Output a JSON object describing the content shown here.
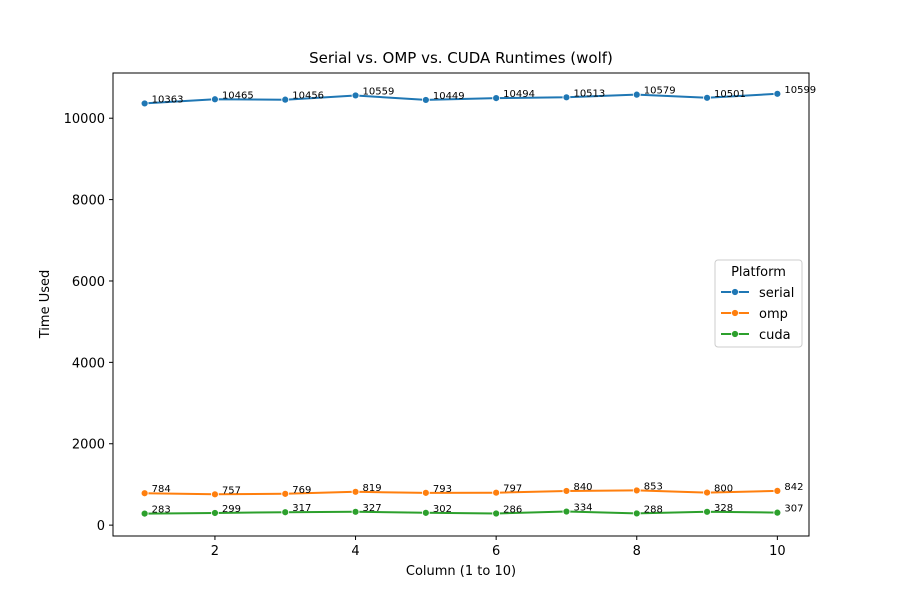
{
  "chart_data": {
    "type": "line",
    "title": "Serial vs. OMP vs. CUDA Runtimes (wolf)",
    "xlabel": "Column (1 to 10)",
    "ylabel": "Time Used",
    "x": [
      1,
      2,
      3,
      4,
      5,
      6,
      7,
      8,
      9,
      10
    ],
    "xticks": [
      2,
      4,
      6,
      8,
      10
    ],
    "yticks": [
      0,
      2000,
      4000,
      6000,
      8000,
      10000
    ],
    "xlim": [
      0.55,
      10.45
    ],
    "ylim": [
      -267,
      11111
    ],
    "grid": false,
    "legend": {
      "title": "Platform",
      "placement": "center-right"
    },
    "series": [
      {
        "name": "serial",
        "color": "#1f77b4",
        "values": [
          10363,
          10465,
          10456,
          10559,
          10449,
          10494,
          10513,
          10579,
          10501,
          10599
        ]
      },
      {
        "name": "omp",
        "color": "#ff7f0e",
        "values": [
          784,
          757,
          769,
          819,
          793,
          797,
          840,
          853,
          800,
          842
        ]
      },
      {
        "name": "cuda",
        "color": "#2ca02c",
        "values": [
          283,
          299,
          317,
          327,
          302,
          286,
          334,
          288,
          328,
          307
        ]
      }
    ]
  }
}
